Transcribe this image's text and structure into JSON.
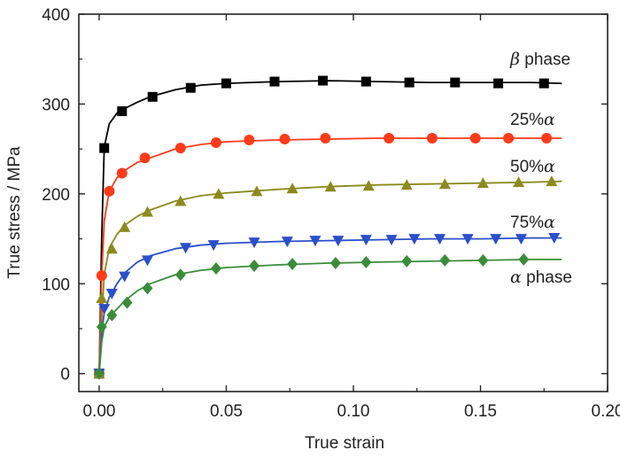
{
  "chart_data": {
    "type": "line",
    "xlabel": "True strain",
    "ylabel": "True stress / MPa",
    "xlim": [
      -0.008,
      0.2
    ],
    "ylim": [
      -20,
      400
    ],
    "xticks": [
      "0.00",
      "0.05",
      "0.10",
      "0.15",
      "0.20"
    ],
    "xtick_values": [
      0,
      0.05,
      0.1,
      0.15,
      0.2
    ],
    "yticks": [
      "0",
      "100",
      "200",
      "300",
      "400"
    ],
    "ytick_values": [
      0,
      100,
      200,
      300,
      400
    ],
    "grid": false,
    "legend": "inline labels at right end of curves",
    "series": [
      {
        "name": "β phase",
        "label_prefix": "β",
        "label_suffix": " phase",
        "color": "#000000",
        "marker": "square",
        "line": [
          [
            0,
            0
          ],
          [
            0.001,
            150
          ],
          [
            0.002,
            252
          ],
          [
            0.004,
            278
          ],
          [
            0.007,
            290
          ],
          [
            0.01,
            295
          ],
          [
            0.015,
            302
          ],
          [
            0.02,
            308
          ],
          [
            0.03,
            316
          ],
          [
            0.04,
            321
          ],
          [
            0.05,
            323
          ],
          [
            0.07,
            325
          ],
          [
            0.09,
            326
          ],
          [
            0.11,
            325
          ],
          [
            0.13,
            324
          ],
          [
            0.15,
            324
          ],
          [
            0.17,
            324
          ],
          [
            0.182,
            323
          ]
        ],
        "points": [
          [
            0.002,
            251
          ],
          [
            0.009,
            292
          ],
          [
            0.021,
            308
          ],
          [
            0.036,
            318
          ],
          [
            0.05,
            323
          ],
          [
            0.069,
            325
          ],
          [
            0.088,
            326
          ],
          [
            0.105,
            325
          ],
          [
            0.122,
            324
          ],
          [
            0.14,
            324
          ],
          [
            0.157,
            323
          ],
          [
            0.175,
            323
          ]
        ]
      },
      {
        "name": "25%α",
        "label_prefix": "25%",
        "label_suffix": "α",
        "color": "#ff3b1a",
        "marker": "circle",
        "line": [
          [
            0,
            0
          ],
          [
            0.001,
            108
          ],
          [
            0.002,
            170
          ],
          [
            0.004,
            203
          ],
          [
            0.007,
            218
          ],
          [
            0.01,
            226
          ],
          [
            0.015,
            235
          ],
          [
            0.02,
            240
          ],
          [
            0.03,
            250
          ],
          [
            0.04,
            255
          ],
          [
            0.05,
            258
          ],
          [
            0.07,
            260
          ],
          [
            0.09,
            261
          ],
          [
            0.11,
            262
          ],
          [
            0.13,
            262
          ],
          [
            0.15,
            262
          ],
          [
            0.17,
            262
          ],
          [
            0.182,
            262
          ]
        ],
        "points": [
          [
            0.001,
            109
          ],
          [
            0.004,
            203
          ],
          [
            0.009,
            223
          ],
          [
            0.018,
            240
          ],
          [
            0.032,
            251
          ],
          [
            0.046,
            257
          ],
          [
            0.059,
            260
          ],
          [
            0.073,
            261
          ],
          [
            0.089,
            262
          ],
          [
            0.114,
            262
          ],
          [
            0.131,
            262
          ],
          [
            0.148,
            262
          ],
          [
            0.161,
            262
          ],
          [
            0.176,
            262
          ]
        ]
      },
      {
        "name": "50%α",
        "label_prefix": "50%",
        "label_suffix": "α",
        "color": "#8c8a1e",
        "marker": "triangle-up",
        "line": [
          [
            0,
            0
          ],
          [
            0.001,
            60
          ],
          [
            0.002,
            110
          ],
          [
            0.004,
            140
          ],
          [
            0.007,
            155
          ],
          [
            0.01,
            165
          ],
          [
            0.015,
            175
          ],
          [
            0.02,
            182
          ],
          [
            0.03,
            192
          ],
          [
            0.04,
            198
          ],
          [
            0.05,
            201
          ],
          [
            0.07,
            205
          ],
          [
            0.09,
            208
          ],
          [
            0.11,
            210
          ],
          [
            0.13,
            211
          ],
          [
            0.15,
            212
          ],
          [
            0.17,
            213
          ],
          [
            0.182,
            214
          ]
        ],
        "points": [
          [
            0.001,
            84
          ],
          [
            0.005,
            139
          ],
          [
            0.01,
            163
          ],
          [
            0.019,
            180
          ],
          [
            0.032,
            192
          ],
          [
            0.047,
            200
          ],
          [
            0.062,
            203
          ],
          [
            0.076,
            206
          ],
          [
            0.091,
            208
          ],
          [
            0.106,
            209
          ],
          [
            0.121,
            210
          ],
          [
            0.136,
            211
          ],
          [
            0.151,
            212
          ],
          [
            0.165,
            213
          ],
          [
            0.178,
            214
          ]
        ]
      },
      {
        "name": "75%α",
        "label_prefix": "75%",
        "label_suffix": "α",
        "color": "#2b4fc9",
        "marker": "triangle-down",
        "line": [
          [
            0,
            0
          ],
          [
            0.001,
            45
          ],
          [
            0.002,
            68
          ],
          [
            0.004,
            85
          ],
          [
            0.007,
            100
          ],
          [
            0.01,
            112
          ],
          [
            0.015,
            124
          ],
          [
            0.02,
            131
          ],
          [
            0.03,
            139
          ],
          [
            0.04,
            143
          ],
          [
            0.05,
            145
          ],
          [
            0.07,
            147
          ],
          [
            0.09,
            148
          ],
          [
            0.11,
            149
          ],
          [
            0.13,
            150
          ],
          [
            0.15,
            150
          ],
          [
            0.17,
            151
          ],
          [
            0.182,
            151
          ]
        ],
        "points": [
          [
            0.002,
            72
          ],
          [
            0.005,
            89
          ],
          [
            0.01,
            108
          ],
          [
            0.019,
            126
          ],
          [
            0.034,
            140
          ],
          [
            0.045,
            143
          ],
          [
            0.061,
            146
          ],
          [
            0.074,
            147
          ],
          [
            0.085,
            148
          ],
          [
            0.094,
            148
          ],
          [
            0.105,
            149
          ],
          [
            0.115,
            149
          ],
          [
            0.124,
            150
          ],
          [
            0.134,
            150
          ],
          [
            0.145,
            150
          ],
          [
            0.156,
            150
          ],
          [
            0.166,
            150
          ],
          [
            0.179,
            151
          ]
        ]
      },
      {
        "name": "α phase",
        "label_prefix": "α",
        "label_suffix": " phase",
        "color": "#3a8c3a",
        "marker": "diamond",
        "line": [
          [
            0,
            0
          ],
          [
            0.001,
            35
          ],
          [
            0.002,
            52
          ],
          [
            0.004,
            63
          ],
          [
            0.007,
            72
          ],
          [
            0.01,
            81
          ],
          [
            0.015,
            92
          ],
          [
            0.02,
            100
          ],
          [
            0.03,
            110
          ],
          [
            0.04,
            115
          ],
          [
            0.05,
            118
          ],
          [
            0.07,
            121
          ],
          [
            0.09,
            123
          ],
          [
            0.11,
            124
          ],
          [
            0.13,
            125
          ],
          [
            0.15,
            126
          ],
          [
            0.17,
            127
          ],
          [
            0.182,
            127
          ]
        ],
        "points": [
          [
            0.001,
            52
          ],
          [
            0.005,
            65
          ],
          [
            0.011,
            79
          ],
          [
            0.019,
            95
          ],
          [
            0.032,
            110
          ],
          [
            0.046,
            117
          ],
          [
            0.061,
            120
          ],
          [
            0.076,
            122
          ],
          [
            0.093,
            123
          ],
          [
            0.105,
            124
          ],
          [
            0.121,
            125
          ],
          [
            0.136,
            126
          ],
          [
            0.151,
            126
          ],
          [
            0.167,
            127
          ]
        ]
      }
    ],
    "origin_markers": [
      [
        0,
        0
      ]
    ]
  }
}
